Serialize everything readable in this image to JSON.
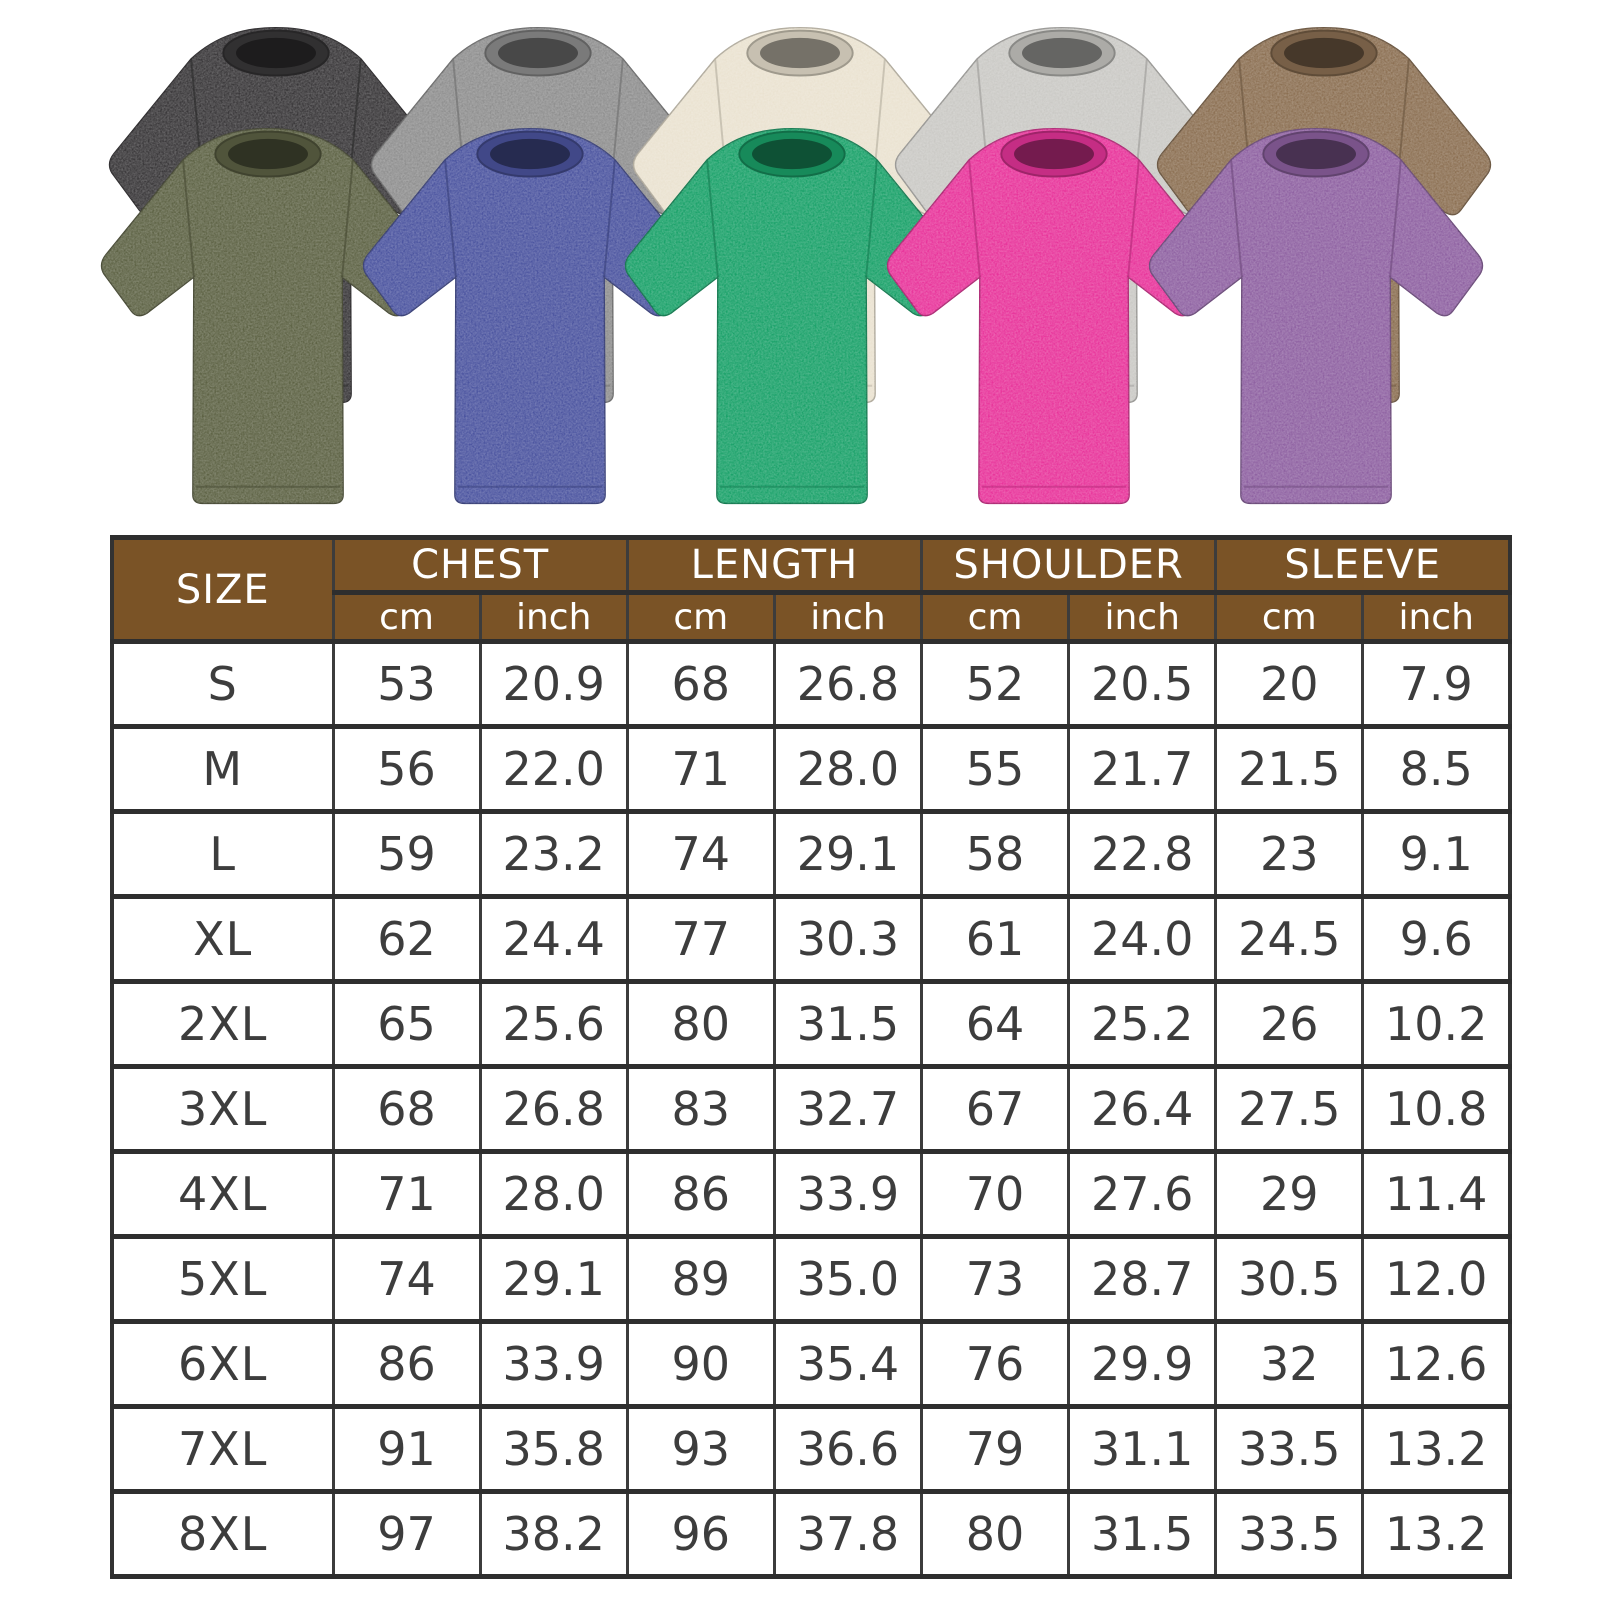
{
  "page": {
    "background": "#ffffff"
  },
  "gallery": {
    "back_row": [
      {
        "name": "black-washed-tee",
        "color": "#3a383a"
      },
      {
        "name": "gray-washed-tee",
        "color": "#8f8f8f"
      },
      {
        "name": "cream-washed-tee",
        "color": "#eae2d0"
      },
      {
        "name": "light-gray-washed-tee",
        "color": "#cac9c5"
      },
      {
        "name": "brown-washed-tee",
        "color": "#8c7053"
      }
    ],
    "front_row": [
      {
        "name": "army-green-washed-tee",
        "color": "#5e6345"
      },
      {
        "name": "blue-washed-tee",
        "color": "#4c55a0"
      },
      {
        "name": "green-washed-tee",
        "color": "#1ba26a"
      },
      {
        "name": "rose-washed-tee",
        "color": "#e8359b"
      },
      {
        "name": "purple-washed-tee",
        "color": "#8f62a2"
      }
    ]
  },
  "size_chart": {
    "header": {
      "size_label": "SIZE",
      "groups": [
        {
          "label": "CHEST"
        },
        {
          "label": "LENGTH"
        },
        {
          "label": "SHOULDER"
        },
        {
          "label": "SLEEVE"
        }
      ],
      "unit_cm": "cm",
      "unit_inch": "inch",
      "bg_color": "#7a5326",
      "text_color": "#ffffff",
      "border_color": "#323232"
    },
    "rows": [
      [
        "S",
        "53",
        "20.9",
        "68",
        "26.8",
        "52",
        "20.5",
        "20",
        "7.9"
      ],
      [
        "M",
        "56",
        "22.0",
        "71",
        "28.0",
        "55",
        "21.7",
        "21.5",
        "8.5"
      ],
      [
        "L",
        "59",
        "23.2",
        "74",
        "29.1",
        "58",
        "22.8",
        "23",
        "9.1"
      ],
      [
        "XL",
        "62",
        "24.4",
        "77",
        "30.3",
        "61",
        "24.0",
        "24.5",
        "9.6"
      ],
      [
        "2XL",
        "65",
        "25.6",
        "80",
        "31.5",
        "64",
        "25.2",
        "26",
        "10.2"
      ],
      [
        "3XL",
        "68",
        "26.8",
        "83",
        "32.7",
        "67",
        "26.4",
        "27.5",
        "10.8"
      ],
      [
        "4XL",
        "71",
        "28.0",
        "86",
        "33.9",
        "70",
        "27.6",
        "29",
        "11.4"
      ],
      [
        "5XL",
        "74",
        "29.1",
        "89",
        "35.0",
        "73",
        "28.7",
        "30.5",
        "12.0"
      ],
      [
        "6XL",
        "86",
        "33.9",
        "90",
        "35.4",
        "76",
        "29.9",
        "32",
        "12.6"
      ],
      [
        "7XL",
        "91",
        "35.8",
        "93",
        "36.6",
        "79",
        "31.1",
        "33.5",
        "13.2"
      ],
      [
        "8XL",
        "97",
        "38.2",
        "96",
        "37.8",
        "80",
        "31.5",
        "33.5",
        "13.2"
      ]
    ]
  },
  "chart_data": {
    "type": "table",
    "title": "T-shirt size chart (washed oversized tee)",
    "columns": [
      "SIZE",
      "CHEST cm",
      "CHEST inch",
      "LENGTH cm",
      "LENGTH inch",
      "SHOULDER cm",
      "SHOULDER inch",
      "SLEEVE cm",
      "SLEEVE inch"
    ],
    "rows": [
      [
        "S",
        53,
        20.9,
        68,
        26.8,
        52,
        20.5,
        20,
        7.9
      ],
      [
        "M",
        56,
        22.0,
        71,
        28.0,
        55,
        21.7,
        21.5,
        8.5
      ],
      [
        "L",
        59,
        23.2,
        74,
        29.1,
        58,
        22.8,
        23,
        9.1
      ],
      [
        "XL",
        62,
        24.4,
        77,
        30.3,
        61,
        24.0,
        24.5,
        9.6
      ],
      [
        "2XL",
        65,
        25.6,
        80,
        31.5,
        64,
        25.2,
        26,
        10.2
      ],
      [
        "3XL",
        68,
        26.8,
        83,
        32.7,
        67,
        26.4,
        27.5,
        10.8
      ],
      [
        "4XL",
        71,
        28.0,
        86,
        33.9,
        70,
        27.6,
        29,
        11.4
      ],
      [
        "5XL",
        74,
        29.1,
        89,
        35.0,
        73,
        28.7,
        30.5,
        12.0
      ],
      [
        "6XL",
        86,
        33.9,
        90,
        35.4,
        76,
        29.9,
        32,
        12.6
      ],
      [
        "7XL",
        91,
        35.8,
        93,
        36.6,
        79,
        31.1,
        33.5,
        13.2
      ],
      [
        "8XL",
        97,
        38.2,
        96,
        37.8,
        80,
        31.5,
        33.5,
        13.2
      ]
    ],
    "swatches": [
      "black",
      "gray",
      "cream",
      "light-gray",
      "brown",
      "army-green",
      "blue",
      "green",
      "rose",
      "purple"
    ]
  }
}
